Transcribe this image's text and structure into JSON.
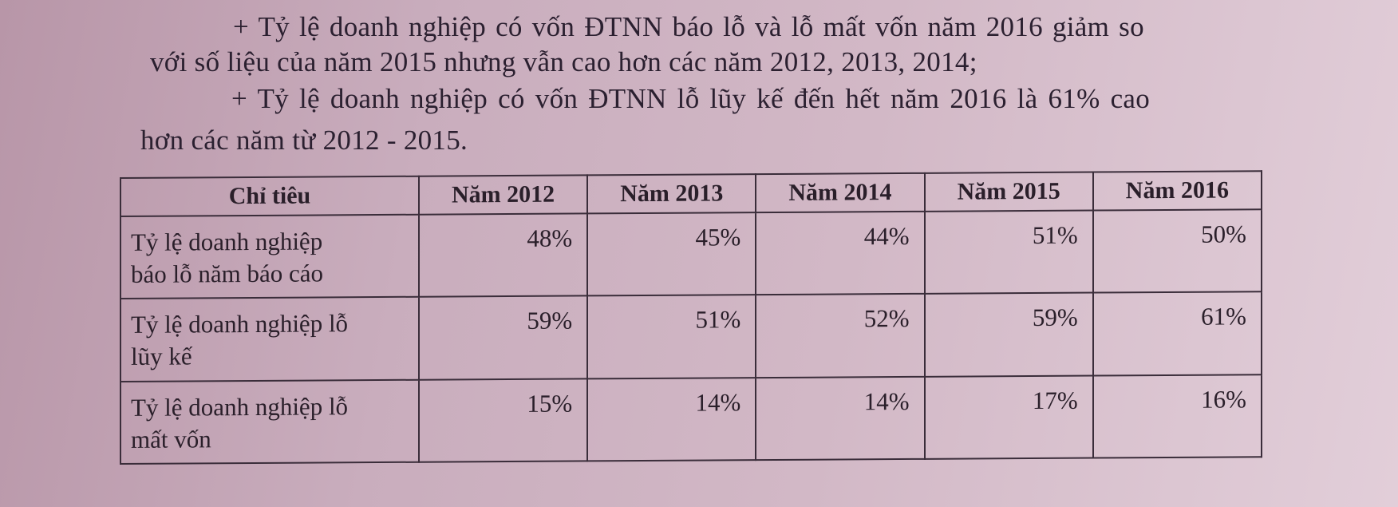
{
  "paragraphs": [
    "+ Tỷ lệ doanh nghiệp có vốn ĐTNN báo lỗ và lỗ mất vốn năm 2016 giảm so",
    "với số liệu của năm 2015 nhưng vẫn cao hơn các năm 2012, 2013, 2014;",
    "+ Tỷ lệ doanh nghiệp có vốn ĐTNN lỗ lũy kế đến hết năm 2016 là 61% cao",
    "hơn các năm từ 2012 - 2015."
  ],
  "table": {
    "headers": [
      "Chỉ tiêu",
      "Năm 2012",
      "Năm 2013",
      "Năm 2014",
      "Năm 2015",
      "Năm 2016"
    ],
    "rows": [
      {
        "label_line1": "Tỷ lệ doanh nghiệp",
        "label_line2": "báo lỗ năm báo cáo",
        "values": [
          "48%",
          "45%",
          "44%",
          "51%",
          "50%"
        ]
      },
      {
        "label_line1": "Tỷ lệ doanh nghiệp lỗ",
        "label_line2": "lũy kế",
        "values": [
          "59%",
          "51%",
          "52%",
          "59%",
          "61%"
        ]
      },
      {
        "label_line1": "Tỷ lệ doanh nghiệp lỗ",
        "label_line2": "mất vốn",
        "values": [
          "15%",
          "14%",
          "14%",
          "17%",
          "16%"
        ]
      }
    ]
  }
}
